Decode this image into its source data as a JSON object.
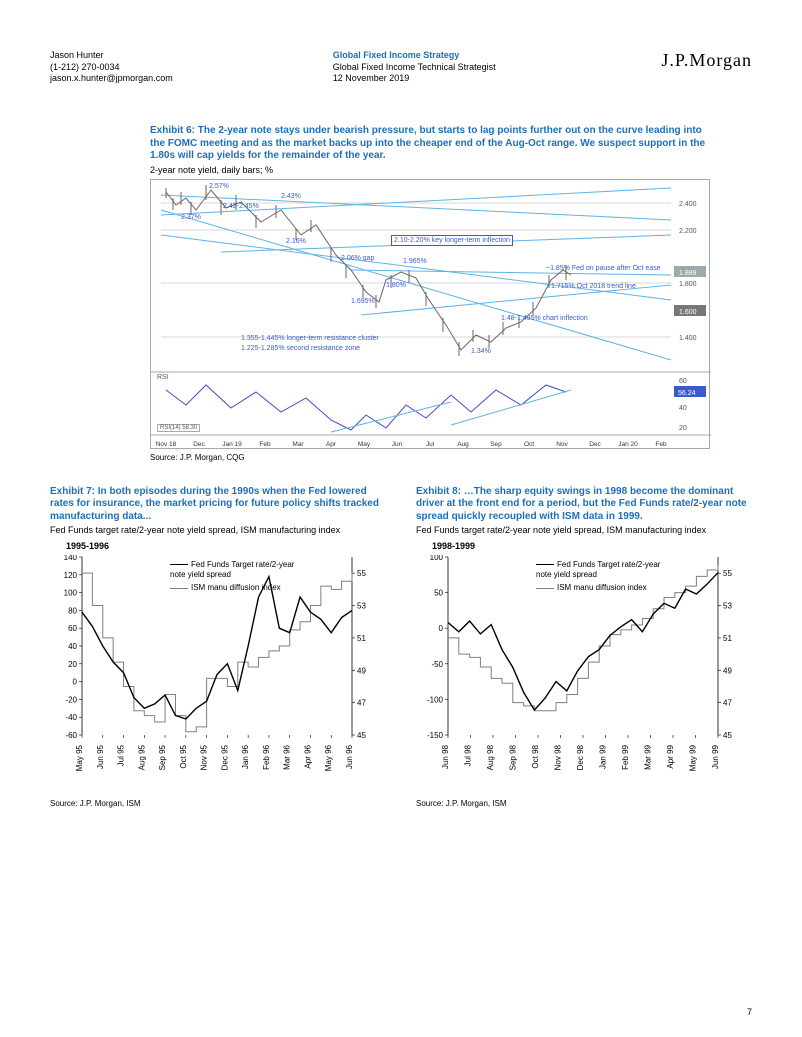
{
  "header": {
    "author": "Jason Hunter",
    "phone": "(1-212) 270-0034",
    "email": "jason.x.hunter@jpmorgan.com",
    "group_title": "Global Fixed Income Strategy",
    "group_sub": "Global Fixed Income Technical Strategist",
    "date": "12 November 2019",
    "logo": "J.P.Morgan"
  },
  "page_number": "7",
  "exhibit6": {
    "title": "Exhibit 6: The 2-year note stays under bearish pressure, but starts to lag points further out on the curve leading into the FOMC meeting and as the market backs up into the cheaper end of the Aug-Oct range.  We suspect support in the 1.80s will cap yields for the remainder of the year.",
    "subtitle": "2-year note yield, daily bars; %",
    "source": "Source: J.P. Morgan, CQG",
    "y_ticks": [
      "2.400",
      "2.200",
      "1.889",
      "1.800",
      "1.600",
      "1.400"
    ],
    "y_range": [
      1.2,
      2.6
    ],
    "x_labels": [
      "Nov 18",
      "Dec",
      "Jan 19",
      "Feb",
      "Mar",
      "Apr",
      "May",
      "Jun",
      "Jul",
      "Aug",
      "Sep",
      "Oct",
      "Nov",
      "Dec",
      "Jan 20",
      "Feb"
    ],
    "annotations": {
      "a1": "2.57%",
      "a2": "2.42-2.45%",
      "a3": "2.37%",
      "a4": "2.43%",
      "a5": "2.16%",
      "a6": "2.10-2.20% key longer-term inflection",
      "a7": "2.06% gap",
      "a8": "1.965%",
      "a9": "1.80%",
      "a10": "1.695%",
      "a11": "~1.85% Fed on pause after Oct ease",
      "a12": "1.715% Oct 2018 trend line",
      "a13": "1.48-1.495% chart inflection",
      "a14": "1.34%",
      "a15": "1.355-1.445% longer-term resistance cluster",
      "a16": "1.225-1.285% second resistance zone"
    },
    "rsi": {
      "label": "RSI",
      "ticks": [
        "60",
        "56.24",
        "40",
        "20"
      ],
      "box_text": "RSI(14)   58.30"
    },
    "colors": {
      "trend_line": "#5db4e6",
      "price": "#666666",
      "annotation_text": "#3a5bcc",
      "rsi_line": "#4a4ac8"
    }
  },
  "exhibit7": {
    "title": "Exhibit 7: In both episodes during the 1990s when the Fed lowered rates for insurance, the market pricing for future policy shifts tracked manufacturing data...",
    "subtitle": "Fed Funds target rate/2-year note yield spread, ISM manufacturing index",
    "period": "1995-1996",
    "source": "Source: J.P. Morgan, ISM",
    "left_axis": {
      "ticks": [
        140,
        120,
        100,
        80,
        60,
        40,
        20,
        0,
        -20,
        -40,
        -60
      ],
      "range": [
        -60,
        140
      ]
    },
    "right_axis": {
      "ticks": [
        55,
        53,
        51,
        49,
        47,
        45
      ],
      "range": [
        45,
        56
      ]
    },
    "x_labels": [
      "May 95",
      "Jun 95",
      "Jul 95",
      "Aug 95",
      "Sep 95",
      "Oct 95",
      "Nov 95",
      "Dec 95",
      "Jan 96",
      "Feb 96",
      "Mar 96",
      "Apr 96",
      "May 96",
      "Jun 96"
    ],
    "legend": {
      "s1": "Fed Funds Target rate/2-year note yield spread",
      "s2": "ISM manu diffusion index"
    },
    "series1_color": "#000000",
    "series2_color": "#808080",
    "series1_values": [
      78,
      62,
      40,
      22,
      10,
      -18,
      -30,
      -25,
      -15,
      -38,
      -42,
      -30,
      -22,
      8,
      20,
      -10,
      40,
      95,
      118,
      60,
      55,
      95,
      78,
      70,
      55,
      72,
      80
    ],
    "series2_values": [
      55,
      53,
      51,
      49.5,
      48,
      46.5,
      46.2,
      45.8,
      47.5,
      46.2,
      45.2,
      45.5,
      48.5,
      48.5,
      48,
      49.5,
      49.2,
      49.8,
      50.2,
      50.5,
      51.5,
      52,
      53,
      54.2,
      54,
      54.5,
      55
    ]
  },
  "exhibit8": {
    "title": "Exhibit 8: …The sharp equity swings in 1998 become the dominant driver at the front end for a period, but the Fed Funds rate/2-year note spread quickly recoupled with ISM data in 1999.",
    "subtitle": "Fed Funds target rate/2-year note yield spread, ISM manufacturing index",
    "period": "1998-1999",
    "source": "Source: J.P. Morgan, ISM",
    "left_axis": {
      "ticks": [
        100,
        50,
        0,
        -50,
        -100,
        -150
      ],
      "range": [
        -150,
        100
      ]
    },
    "right_axis": {
      "ticks": [
        55,
        53,
        51,
        49,
        47,
        45
      ],
      "range": [
        45,
        56
      ]
    },
    "x_labels": [
      "Jun 98",
      "Jul 98",
      "Aug 98",
      "Sep 98",
      "Oct 98",
      "Nov 98",
      "Dec 98",
      "Jan 99",
      "Feb 99",
      "Mar 99",
      "Apr 99",
      "May 99",
      "Jun 99"
    ],
    "legend": {
      "s1": "Fed Funds Target rate/2-year note yield spread",
      "s2": "ISM manu diffusion index"
    },
    "series1_color": "#000000",
    "series2_color": "#808080",
    "series1_values": [
      8,
      -5,
      10,
      -8,
      5,
      -30,
      -55,
      -90,
      -115,
      -98,
      -75,
      -88,
      -60,
      -40,
      -30,
      -10,
      2,
      12,
      -5,
      20,
      35,
      28,
      55,
      48,
      62,
      78
    ],
    "series2_values": [
      51,
      50,
      49.8,
      49.2,
      48.5,
      48.2,
      47,
      46.8,
      46.5,
      46.5,
      47,
      47.5,
      48.5,
      49.5,
      50.5,
      51.2,
      51.5,
      51.8,
      52.2,
      52.8,
      53.5,
      53.8,
      54.2,
      54.8,
      55.2,
      55.5
    ]
  }
}
